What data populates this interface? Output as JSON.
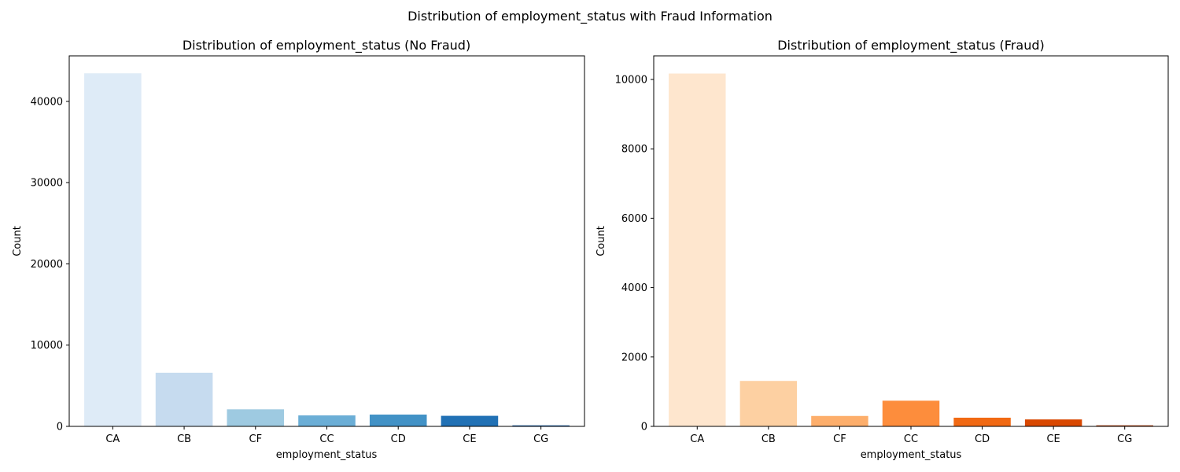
{
  "figure": {
    "suptitle": "Distribution of employment_status with Fraud Information"
  },
  "chart_data": [
    {
      "type": "bar",
      "title": "Distribution of employment_status (No Fraud)",
      "xlabel": "employment_status",
      "ylabel": "Count",
      "categories": [
        "CA",
        "CB",
        "CF",
        "CC",
        "CD",
        "CE",
        "CG"
      ],
      "values": [
        43450,
        6600,
        2100,
        1350,
        1450,
        1300,
        120
      ],
      "ylim": [
        0,
        45600
      ],
      "yticks": [
        0,
        10000,
        20000,
        30000,
        40000
      ],
      "colors": [
        "#deebf7",
        "#c6dbef",
        "#9ecae1",
        "#6baed6",
        "#4292c6",
        "#2171b5",
        "#08519c"
      ],
      "grid": false,
      "legend": "none"
    },
    {
      "type": "bar",
      "title": "Distribution of employment_status (Fraud)",
      "xlabel": "employment_status",
      "ylabel": "Count",
      "categories": [
        "CA",
        "CB",
        "CF",
        "CC",
        "CD",
        "CE",
        "CG"
      ],
      "values": [
        10170,
        1310,
        300,
        740,
        250,
        200,
        30
      ],
      "ylim": [
        0,
        10680
      ],
      "yticks": [
        0,
        2000,
        4000,
        6000,
        8000,
        10000
      ],
      "colors": [
        "#fee6ce",
        "#fdd0a2",
        "#fdae6b",
        "#fd8d3c",
        "#f16913",
        "#d94801",
        "#a63603"
      ],
      "grid": false,
      "legend": "none"
    }
  ]
}
